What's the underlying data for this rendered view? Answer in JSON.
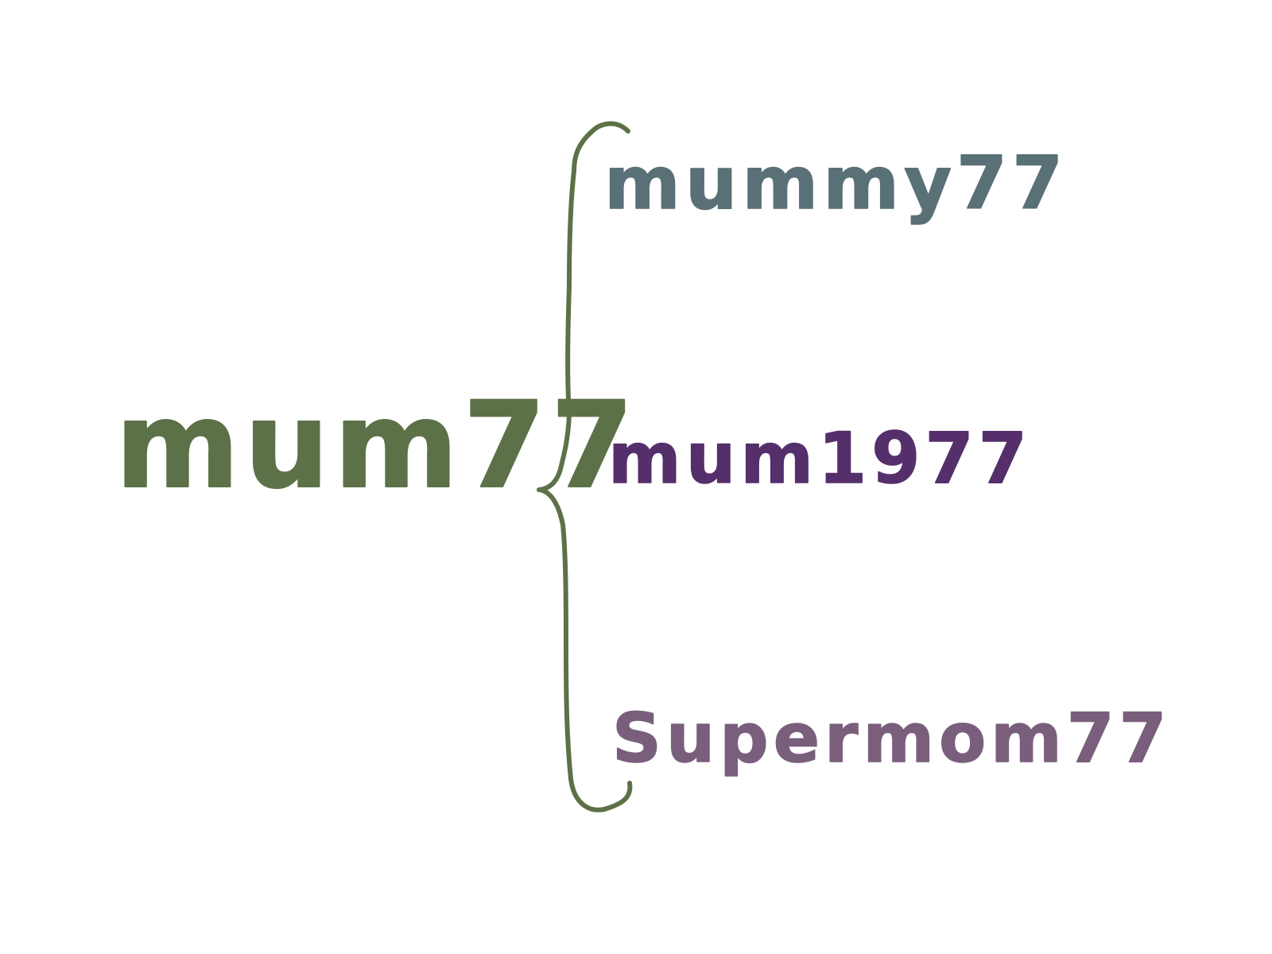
{
  "root": {
    "label": "mum77",
    "color": "#5d7148"
  },
  "brace": {
    "color": "#5d7148"
  },
  "variants": [
    {
      "label": "mummy77",
      "color": "#5a7077"
    },
    {
      "label": "mum1977",
      "color": "#552f6b"
    },
    {
      "label": "Supermom77",
      "color": "#7a5f7d"
    }
  ]
}
